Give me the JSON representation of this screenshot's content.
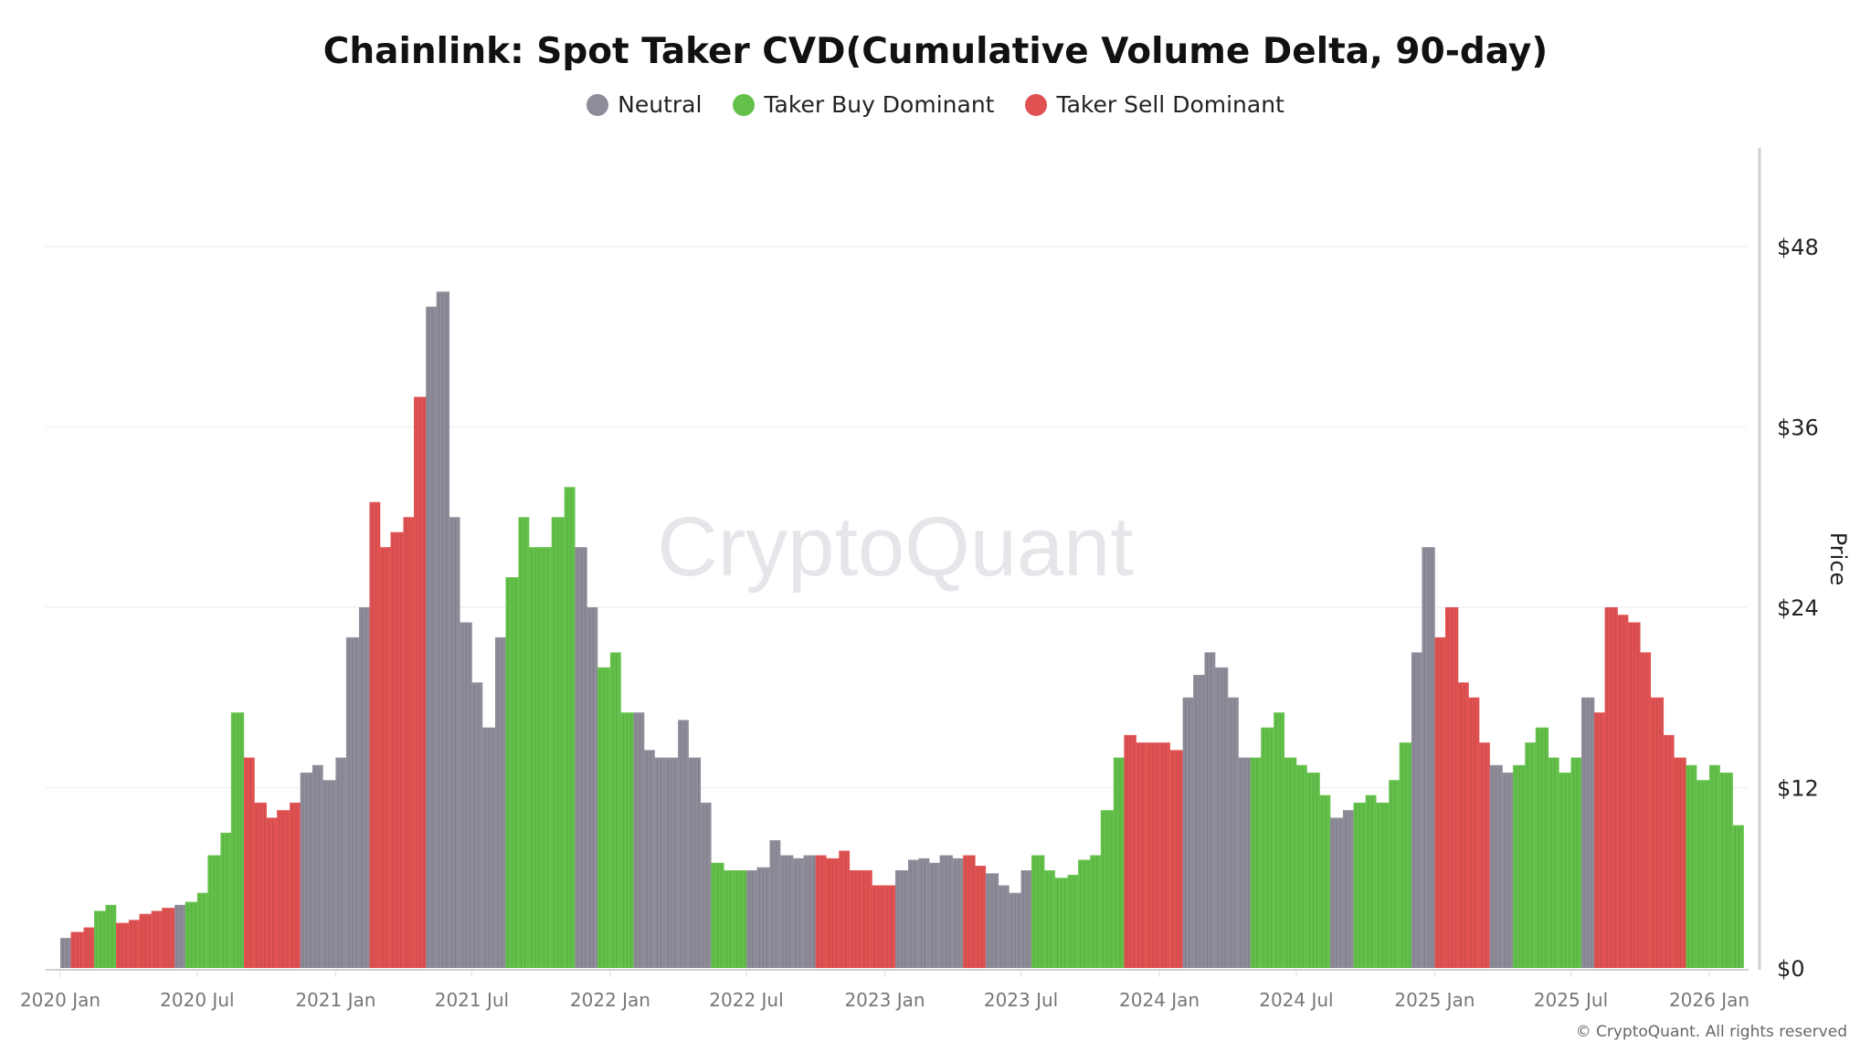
{
  "chart_data": {
    "type": "bar",
    "title": "Chainlink: Spot Taker CVD(Cumulative Volume Delta, 90-day)",
    "ylabel": "Price",
    "ylim": [
      0,
      54
    ],
    "yticks": [
      "$0",
      "$12",
      "$24",
      "$36",
      "$48"
    ],
    "ytick_values": [
      0,
      12,
      24,
      36,
      48
    ],
    "xticks": [
      "2020 Jan",
      "2020 Jul",
      "2021 Jan",
      "2021 Jul",
      "2022 Jan",
      "2022 Jul",
      "2023 Jan",
      "2023 Jul",
      "2024 Jan",
      "2024 Jul",
      "2025 Jan",
      "2025 Jul",
      "2026 Jan"
    ],
    "xtick_dates": [
      "2020-01-01",
      "2020-07-01",
      "2021-01-01",
      "2021-07-01",
      "2022-01-01",
      "2022-07-01",
      "2023-01-01",
      "2023-07-01",
      "2024-01-01",
      "2024-07-01",
      "2025-01-01",
      "2025-07-01",
      "2026-01-01"
    ],
    "grid": true,
    "legend_position": "top-center",
    "legend": [
      {
        "key": "N",
        "label": "Neutral",
        "color": "#8e8c99"
      },
      {
        "key": "B",
        "label": "Taker Buy Dominant",
        "color": "#63c04a"
      },
      {
        "key": "S",
        "label": "Taker Sell Dominant",
        "color": "#e05252"
      }
    ],
    "x": [
      "2020-01-01",
      "2020-01-15",
      "2020-02-01",
      "2020-02-15",
      "2020-03-01",
      "2020-03-15",
      "2020-04-01",
      "2020-04-15",
      "2020-05-01",
      "2020-05-15",
      "2020-06-01",
      "2020-06-15",
      "2020-07-01",
      "2020-07-15",
      "2020-08-01",
      "2020-08-15",
      "2020-09-01",
      "2020-09-15",
      "2020-10-01",
      "2020-10-15",
      "2020-11-01",
      "2020-11-15",
      "2020-12-01",
      "2020-12-15",
      "2021-01-01",
      "2021-01-15",
      "2021-02-01",
      "2021-02-15",
      "2021-03-01",
      "2021-03-15",
      "2021-04-01",
      "2021-04-15",
      "2021-05-01",
      "2021-05-15",
      "2021-06-01",
      "2021-06-15",
      "2021-07-01",
      "2021-07-15",
      "2021-08-01",
      "2021-08-15",
      "2021-09-01",
      "2021-09-15",
      "2021-10-01",
      "2021-10-15",
      "2021-11-01",
      "2021-11-15",
      "2021-12-01",
      "2021-12-15",
      "2022-01-01",
      "2022-01-15",
      "2022-02-01",
      "2022-02-15",
      "2022-03-01",
      "2022-03-15",
      "2022-04-01",
      "2022-04-15",
      "2022-05-01",
      "2022-05-15",
      "2022-06-01",
      "2022-06-15",
      "2022-07-01",
      "2022-07-15",
      "2022-08-01",
      "2022-08-15",
      "2022-09-01",
      "2022-09-15",
      "2022-10-01",
      "2022-10-15",
      "2022-11-01",
      "2022-11-15",
      "2022-12-01",
      "2022-12-15",
      "2023-01-01",
      "2023-01-15",
      "2023-02-01",
      "2023-02-15",
      "2023-03-01",
      "2023-03-15",
      "2023-04-01",
      "2023-04-15",
      "2023-05-01",
      "2023-05-15",
      "2023-06-01",
      "2023-06-15",
      "2023-07-01",
      "2023-07-15",
      "2023-08-01",
      "2023-08-15",
      "2023-09-01",
      "2023-09-15",
      "2023-10-01",
      "2023-10-15",
      "2023-11-01",
      "2023-11-15",
      "2023-12-01",
      "2023-12-15",
      "2024-01-01",
      "2024-01-15",
      "2024-02-01",
      "2024-02-15",
      "2024-03-01",
      "2024-03-15",
      "2024-04-01",
      "2024-04-15",
      "2024-05-01",
      "2024-05-15",
      "2024-06-01",
      "2024-06-15",
      "2024-07-01",
      "2024-07-15",
      "2024-08-01",
      "2024-08-15",
      "2024-09-01",
      "2024-09-15",
      "2024-10-01",
      "2024-10-15",
      "2024-11-01",
      "2024-11-15",
      "2024-12-01",
      "2024-12-15",
      "2025-01-01",
      "2025-01-15",
      "2025-02-01",
      "2025-02-15",
      "2025-03-01",
      "2025-03-15",
      "2025-04-01",
      "2025-04-15",
      "2025-05-01",
      "2025-05-15",
      "2025-06-01",
      "2025-06-15",
      "2025-07-01",
      "2025-07-15",
      "2025-08-01",
      "2025-08-15",
      "2025-09-01",
      "2025-09-15",
      "2025-10-01",
      "2025-10-15",
      "2025-11-01",
      "2025-11-15",
      "2025-12-01",
      "2025-12-15",
      "2026-01-01",
      "2026-01-15",
      "2026-02-01"
    ],
    "values": [
      2.0,
      2.4,
      2.7,
      3.8,
      4.2,
      3.0,
      3.2,
      3.6,
      3.8,
      4.0,
      4.2,
      4.4,
      5.0,
      7.5,
      9.0,
      17.0,
      14.0,
      11.0,
      10.0,
      10.5,
      11.0,
      13.0,
      13.5,
      12.5,
      14.0,
      22.0,
      24.0,
      31.0,
      28.0,
      29.0,
      30.0,
      38.0,
      44.0,
      45.0,
      30.0,
      23.0,
      19.0,
      16.0,
      22.0,
      26.0,
      30.0,
      28.0,
      28.0,
      30.0,
      32.0,
      28.0,
      24.0,
      20.0,
      21.0,
      17.0,
      17.0,
      14.5,
      14.0,
      14.0,
      16.5,
      14.0,
      11.0,
      7.0,
      6.5,
      6.5,
      6.5,
      6.7,
      8.5,
      7.5,
      7.3,
      7.5,
      7.5,
      7.3,
      7.8,
      6.5,
      6.5,
      5.5,
      5.5,
      6.5,
      7.2,
      7.3,
      7.0,
      7.5,
      7.3,
      7.5,
      6.8,
      6.3,
      5.5,
      5.0,
      6.5,
      7.5,
      6.5,
      6.0,
      6.2,
      7.2,
      7.5,
      10.5,
      14.0,
      15.5,
      15.0,
      15.0,
      15.0,
      14.5,
      18.0,
      19.5,
      21.0,
      20.0,
      18.0,
      14.0,
      14.0,
      16.0,
      17.0,
      14.0,
      13.5,
      13.0,
      11.5,
      10.0,
      10.5,
      11.0,
      11.5,
      11.0,
      12.5,
      15.0,
      21.0,
      28.0,
      22.0,
      24.0,
      19.0,
      18.0,
      15.0,
      13.5,
      13.0,
      13.5,
      15.0,
      16.0,
      14.0,
      13.0,
      14.0,
      18.0,
      17.0,
      24.0,
      23.5,
      23.0,
      21.0,
      18.0,
      15.5,
      14.0,
      13.5,
      12.5,
      13.5,
      13.0,
      9.5
    ],
    "regime": [
      "N",
      "S",
      "S",
      "B",
      "B",
      "S",
      "S",
      "S",
      "S",
      "S",
      "N",
      "B",
      "B",
      "B",
      "B",
      "B",
      "S",
      "S",
      "S",
      "S",
      "S",
      "N",
      "N",
      "N",
      "N",
      "N",
      "N",
      "S",
      "S",
      "S",
      "S",
      "S",
      "N",
      "N",
      "N",
      "N",
      "N",
      "N",
      "N",
      "B",
      "B",
      "B",
      "B",
      "B",
      "B",
      "N",
      "N",
      "B",
      "B",
      "B",
      "N",
      "N",
      "N",
      "N",
      "N",
      "N",
      "N",
      "B",
      "B",
      "B",
      "N",
      "N",
      "N",
      "N",
      "N",
      "N",
      "S",
      "S",
      "S",
      "S",
      "S",
      "S",
      "S",
      "N",
      "N",
      "N",
      "N",
      "N",
      "N",
      "S",
      "S",
      "N",
      "N",
      "N",
      "N",
      "B",
      "B",
      "B",
      "B",
      "B",
      "B",
      "B",
      "B",
      "S",
      "S",
      "S",
      "S",
      "S",
      "N",
      "N",
      "N",
      "N",
      "N",
      "N",
      "B",
      "B",
      "B",
      "B",
      "B",
      "B",
      "B",
      "N",
      "N",
      "B",
      "B",
      "B",
      "B",
      "B",
      "N",
      "N",
      "S",
      "S",
      "S",
      "S",
      "S",
      "N",
      "N",
      "B",
      "B",
      "B",
      "B",
      "B",
      "B",
      "N",
      "S",
      "S",
      "S",
      "S",
      "S",
      "S",
      "S",
      "S",
      "B",
      "B",
      "B",
      "B",
      "B"
    ]
  },
  "watermark": "CryptoQuant",
  "copyright": "© CryptoQuant. All rights reserved"
}
